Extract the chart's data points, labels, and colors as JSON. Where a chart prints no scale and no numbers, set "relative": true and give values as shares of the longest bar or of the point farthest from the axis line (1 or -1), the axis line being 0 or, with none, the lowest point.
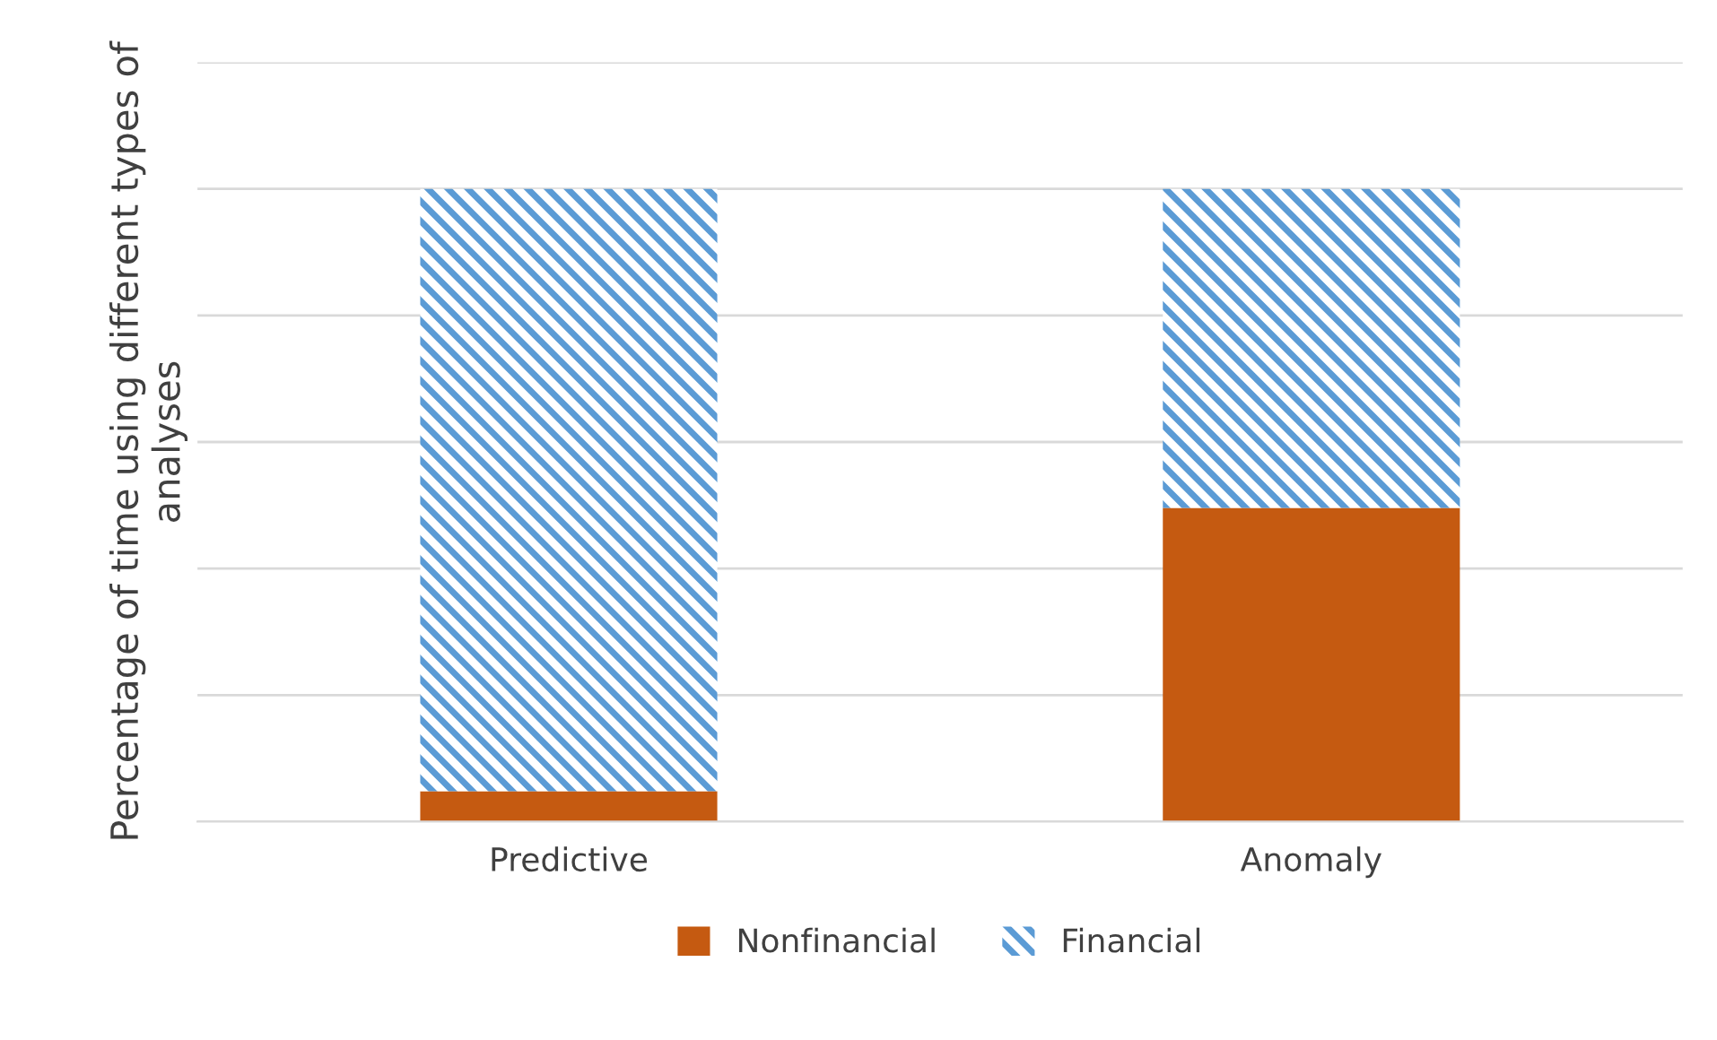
{
  "chart_data": {
    "type": "bar",
    "stacked": true,
    "relative": true,
    "ylabel": "Percentage of time using different types of analyses",
    "categories": [
      "Predictive",
      "Anomaly"
    ],
    "series": [
      {
        "name": "Nonfinancial",
        "color": "#c55a11",
        "values": [
          0.048,
          0.496
        ]
      },
      {
        "name": "Financial",
        "color": "#5b9bd5",
        "values": [
          0.952,
          0.504
        ]
      }
    ],
    "grid": "y",
    "legend": "bottom"
  }
}
